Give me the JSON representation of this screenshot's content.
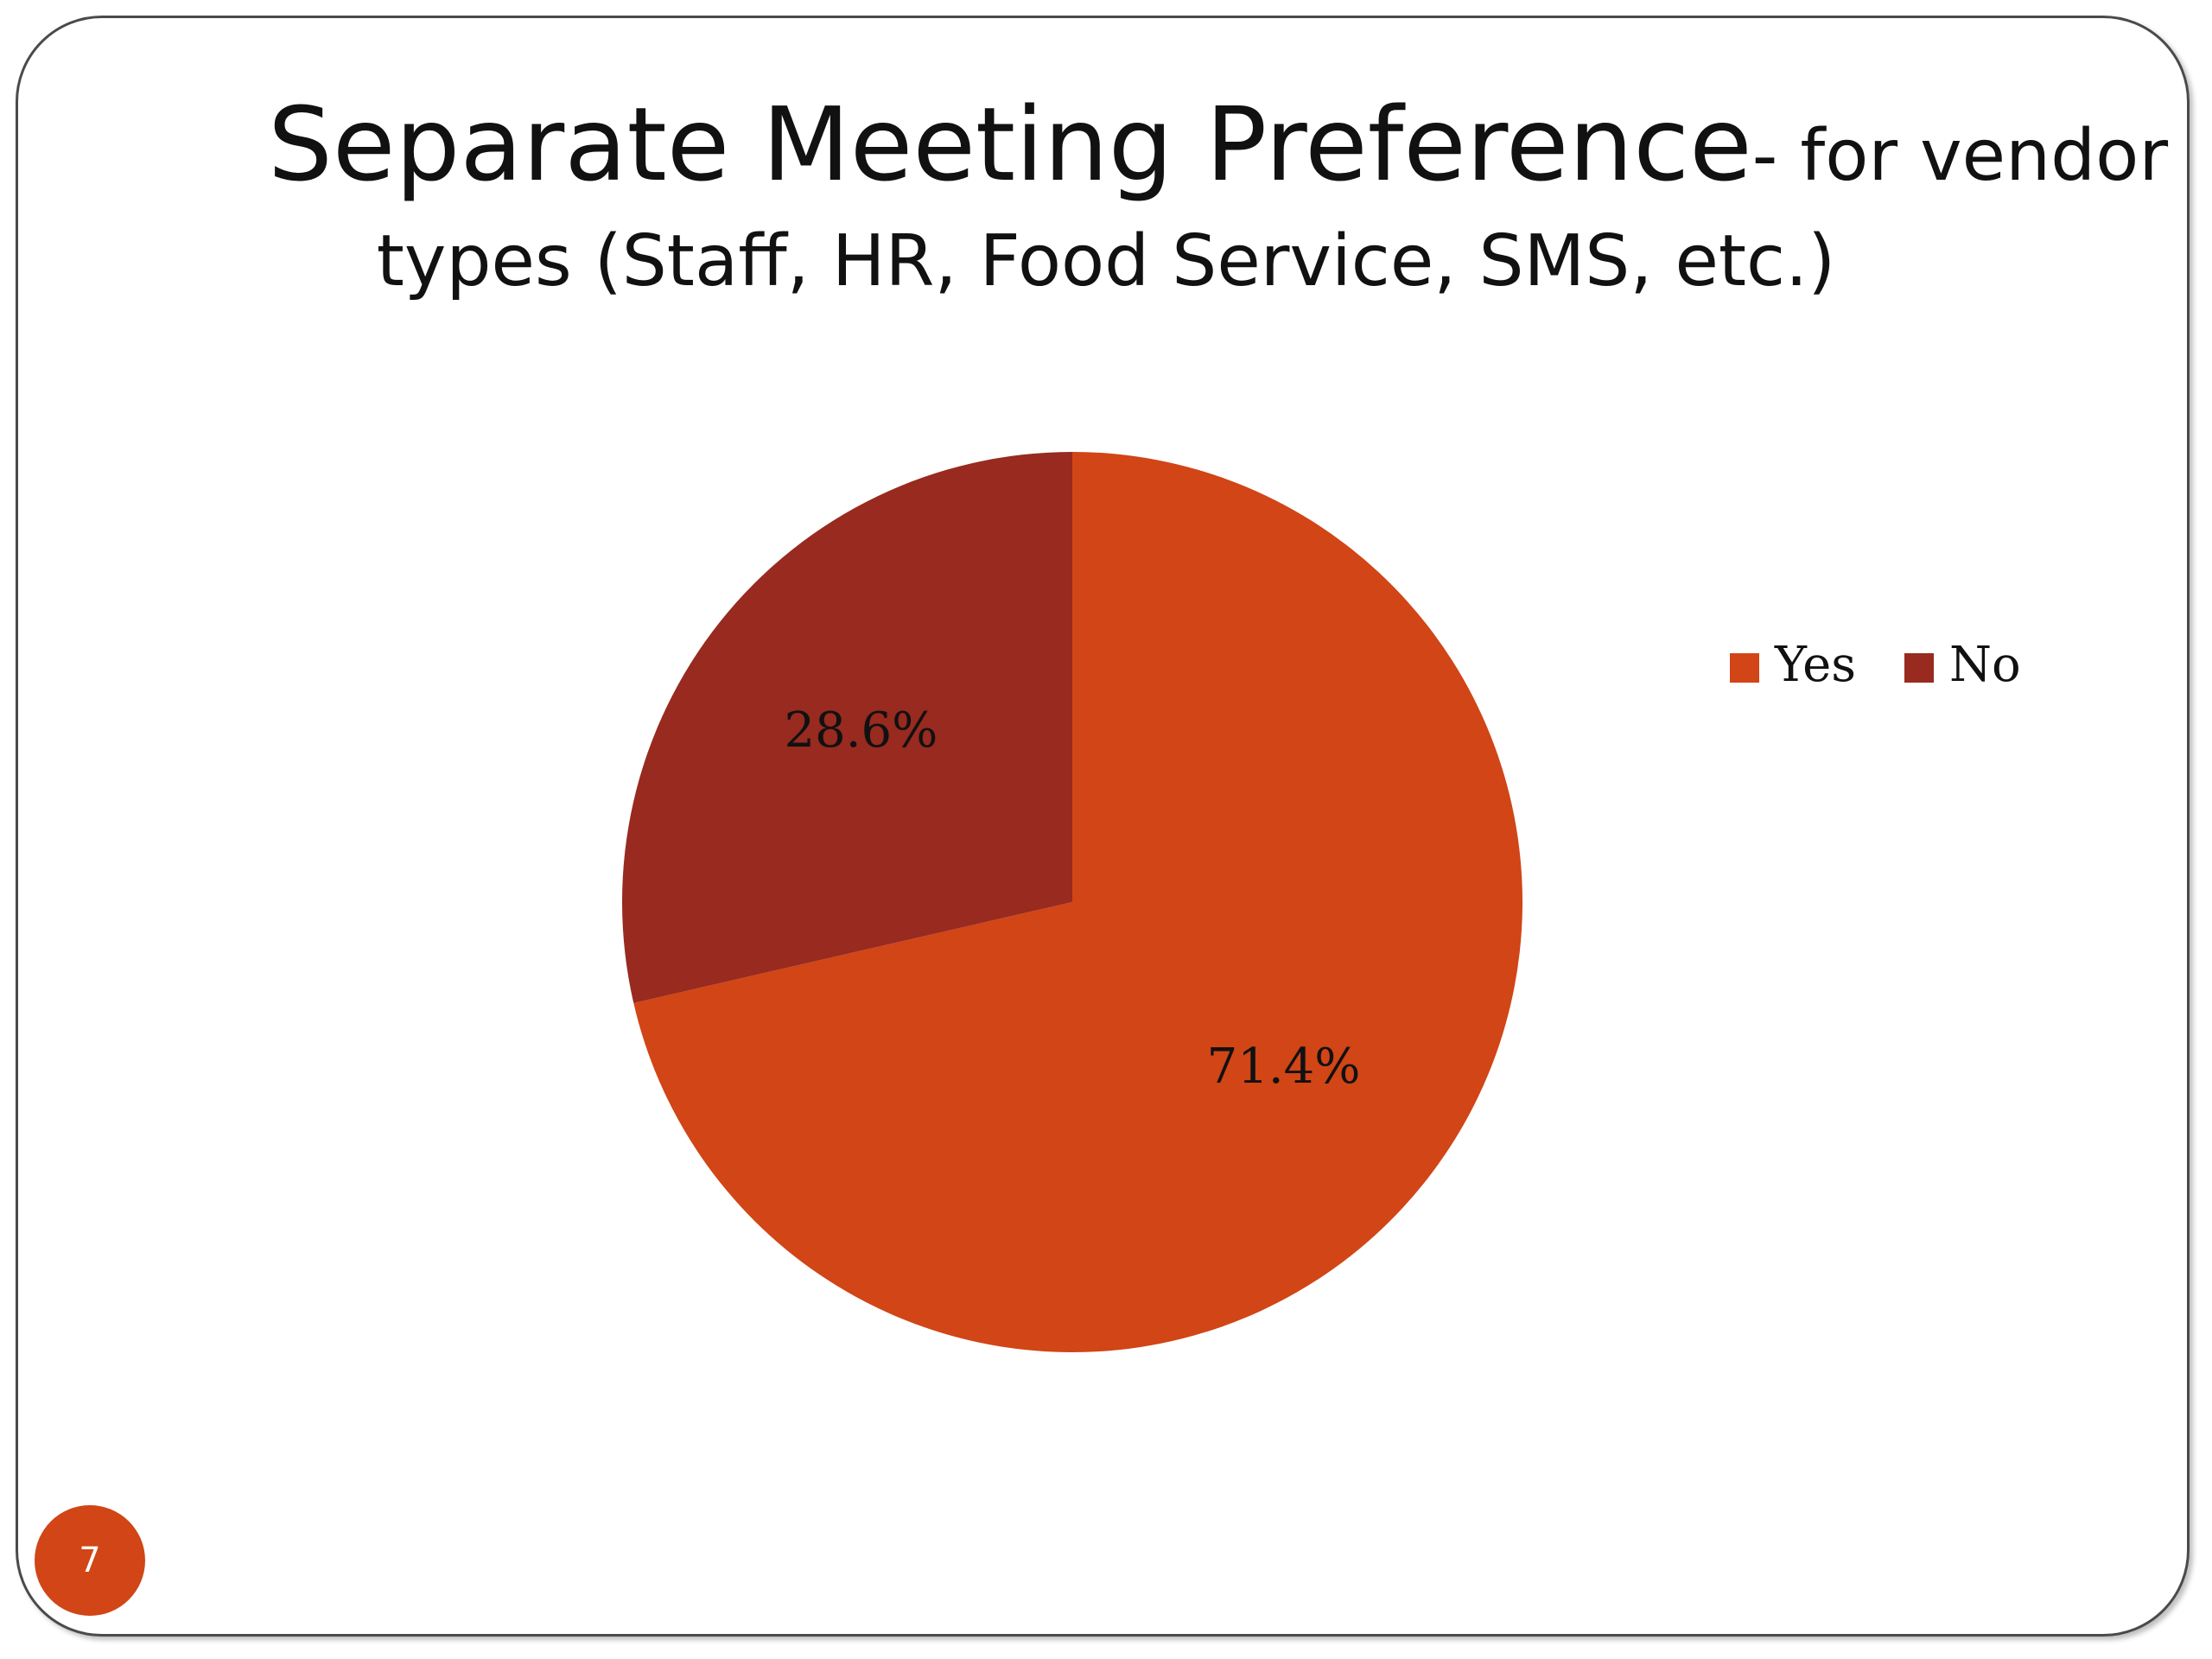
{
  "slide": {
    "title_main": "Separate Meeting Preference",
    "title_sub_part1": "- for vendor",
    "title_sub_part2": "types (Staff, HR, Food Service, SMS, etc.)",
    "page_number": "7"
  },
  "chart_data": {
    "type": "pie",
    "categories": [
      "Yes",
      "No"
    ],
    "values": [
      71.4,
      28.6
    ],
    "data_labels": [
      "71.4%",
      "28.6%"
    ],
    "colors": [
      "#d14516",
      "#982a1f"
    ],
    "legend": {
      "placement": "right",
      "entries": [
        "Yes",
        "No"
      ]
    },
    "start_angle": "12 o'clock",
    "direction": "clockwise"
  }
}
